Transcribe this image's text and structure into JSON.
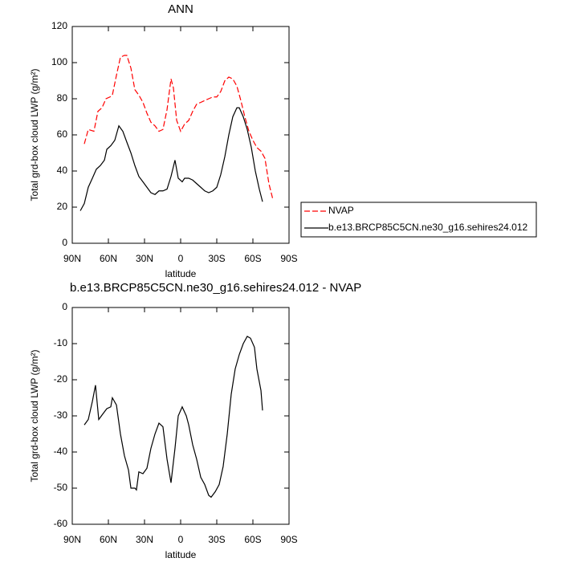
{
  "chart_data": [
    {
      "type": "line",
      "title": "ANN",
      "xlabel": "latitude",
      "ylabel": "Total grd-box cloud LWP (g/m²)",
      "xlim": [
        90,
        -90
      ],
      "xticks": [
        {
          "value": 90,
          "label": "90N"
        },
        {
          "value": 60,
          "label": "60N"
        },
        {
          "value": 30,
          "label": "30N"
        },
        0,
        {
          "value": -30,
          "label": "30S"
        },
        {
          "value": -60,
          "label": "60S"
        },
        {
          "value": -90,
          "label": "90S"
        }
      ],
      "ylim": [
        0,
        120
      ],
      "yticks": [
        0,
        20,
        40,
        60,
        80,
        100,
        120
      ],
      "legend": "right",
      "series": [
        {
          "name": "NVAP",
          "color": "#ff0000",
          "line_style": "dashed",
          "x": [
            80,
            76.7,
            72,
            68.7,
            65.3,
            62,
            58.7,
            56.7,
            53.3,
            50,
            46.7,
            44.7,
            41.3,
            38,
            34.7,
            31.3,
            28,
            24.7,
            21.3,
            18,
            14.7,
            11.3,
            8,
            6,
            3.3,
            0,
            -3.3,
            -6.7,
            -10,
            -13.3,
            -16.7,
            -20,
            -23.3,
            -26.7,
            -30,
            -33.3,
            -36.7,
            -40,
            -43.3,
            -46.7,
            -50,
            -53.3,
            -56.7,
            -60,
            -63.3,
            -66.7,
            -70,
            -73.3,
            -76.7
          ],
          "values": [
            55,
            63,
            62,
            73,
            75,
            80,
            81,
            82,
            93,
            103,
            104,
            104,
            97,
            85,
            82,
            78,
            72,
            67,
            65,
            62,
            63,
            74,
            91,
            86,
            68,
            62,
            66,
            68,
            73,
            77,
            78,
            79,
            80,
            81,
            81,
            84,
            90,
            92,
            91,
            87,
            79,
            70,
            62,
            57,
            53,
            51,
            47,
            33,
            24
          ]
        },
        {
          "name": "b.e13.BRCP85C5CN.ne30_g16.sehires24.012",
          "color": "#000000",
          "line_style": "solid",
          "x": [
            83.3,
            80,
            76.7,
            73.3,
            70,
            66.7,
            63.3,
            61.3,
            58,
            54.7,
            51.3,
            48,
            44.7,
            41.3,
            38,
            34.7,
            31.3,
            28,
            24.7,
            21.3,
            18,
            14.7,
            11.3,
            8,
            4.7,
            2,
            -1.3,
            -3.3,
            -6.7,
            -10,
            -13.3,
            -16.7,
            -20,
            -23.3,
            -26.7,
            -30,
            -33.3,
            -36.7,
            -40,
            -43.3,
            -46.7,
            -48.7,
            -52,
            -55.3,
            -58.7,
            -62,
            -65.3,
            -68
          ],
          "values": [
            18,
            22,
            31,
            36,
            41,
            43,
            46,
            52,
            54,
            57,
            65,
            62,
            56,
            50,
            43,
            37,
            34,
            31,
            28,
            27,
            29,
            29,
            30,
            37,
            46,
            36,
            34,
            36,
            36,
            35,
            33,
            31,
            29,
            28,
            29,
            31,
            38,
            48,
            60,
            70,
            75,
            75,
            70,
            63,
            53,
            40,
            30,
            23
          ]
        }
      ]
    },
    {
      "type": "line",
      "title": "b.e13.BRCP85C5CN.ne30_g16.sehires24.012 - NVAP",
      "xlabel": "latitude",
      "ylabel": "Total grd-box cloud LWP (g/m²)",
      "xlim": [
        90,
        -90
      ],
      "xticks": [
        {
          "value": 90,
          "label": "90N"
        },
        {
          "value": 60,
          "label": "60N"
        },
        {
          "value": 30,
          "label": "30N"
        },
        0,
        {
          "value": -30,
          "label": "30S"
        },
        {
          "value": -60,
          "label": "60S"
        },
        {
          "value": -90,
          "label": "90S"
        }
      ],
      "ylim": [
        -60,
        0
      ],
      "yticks": [
        0,
        -10,
        -20,
        -30,
        -40,
        -50,
        -60
      ],
      "series": [
        {
          "color": "#000000",
          "line_style": "solid",
          "x": [
            80,
            76.7,
            73.3,
            70.7,
            68,
            64.7,
            61.3,
            58,
            56.7,
            53.3,
            50,
            46.7,
            43.3,
            41.3,
            38,
            36.7,
            34.7,
            31.3,
            28,
            24.7,
            21.3,
            18,
            14.7,
            11.3,
            8,
            4.7,
            2,
            -1.3,
            -4.7,
            -6.7,
            -10,
            -13.3,
            -16.7,
            -20,
            -23.3,
            -25.3,
            -28.7,
            -32,
            -35.3,
            -38.7,
            -42,
            -45.3,
            -48.7,
            -52,
            -55.3,
            -58,
            -61.3,
            -63.3,
            -66.7,
            -68
          ],
          "values": [
            -32.5,
            -31,
            -26,
            -21.5,
            -31,
            -29.5,
            -28,
            -27.5,
            -25,
            -27,
            -35,
            -41,
            -45,
            -50,
            -50,
            -50.5,
            -45.5,
            -46,
            -44.5,
            -39,
            -35,
            -32,
            -33,
            -42,
            -48.5,
            -39,
            -30,
            -27.5,
            -30,
            -32.5,
            -38,
            -42,
            -47,
            -49,
            -52,
            -52.5,
            -51,
            -49,
            -44,
            -35,
            -24,
            -17,
            -13,
            -10,
            -8,
            -8.5,
            -11,
            -17,
            -23,
            -28.5
          ]
        }
      ]
    }
  ]
}
